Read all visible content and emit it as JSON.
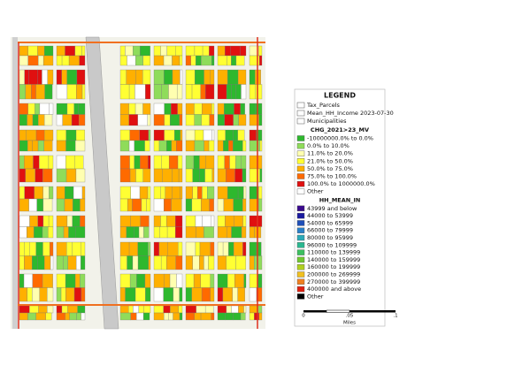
{
  "legend": {
    "title": "LEGEND",
    "layers": [
      "Tax_Parcels",
      "Mean_HH_Income 2023-07-30",
      "Municipalities"
    ],
    "groups": [
      {
        "title": "CHG_2021>23_MV",
        "items": [
          {
            "label": "-10000000.0% to 0.0%",
            "color": "#2eb82e"
          },
          {
            "label": "0.0% to 10.0%",
            "color": "#8fdc5a"
          },
          {
            "label": "11.0% to 20.0%",
            "color": "#ffffb0"
          },
          {
            "label": "21.0% to 50.0%",
            "color": "#ffff33"
          },
          {
            "label": "50.0% to 75.0%",
            "color": "#ffb000"
          },
          {
            "label": "75.0% to 100.0%",
            "color": "#ff6a00"
          },
          {
            "label": "100.0% to 1000000.0%",
            "color": "#e01010"
          },
          {
            "label": "Other",
            "color": "#ffffff"
          }
        ]
      },
      {
        "title": "HH_MEAN_IN",
        "items": [
          {
            "label": "43999 and below",
            "color": "#3a0a8c"
          },
          {
            "label": "44000 to 53999",
            "color": "#1a1aa0"
          },
          {
            "label": "54000 to 65999",
            "color": "#1f4fb8"
          },
          {
            "label": "66000 to 79999",
            "color": "#2a7fc8"
          },
          {
            "label": "80000 to 95999",
            "color": "#2aaab8"
          },
          {
            "label": "96000 to 109999",
            "color": "#2ab890"
          },
          {
            "label": "110000 to 139999",
            "color": "#3cc060"
          },
          {
            "label": "140000 to 159999",
            "color": "#70c830"
          },
          {
            "label": "160000 to 199999",
            "color": "#b0d020"
          },
          {
            "label": "200000 to 269999",
            "color": "#f0c020"
          },
          {
            "label": "270000 to 399999",
            "color": "#f08020"
          },
          {
            "label": "400000 and above",
            "color": "#e02010"
          },
          {
            "label": "Other",
            "color": "#000000"
          }
        ]
      }
    ]
  },
  "scale_bar": {
    "ticks": [
      "0",
      ".05",
      ".1"
    ],
    "unit": "Miles"
  }
}
